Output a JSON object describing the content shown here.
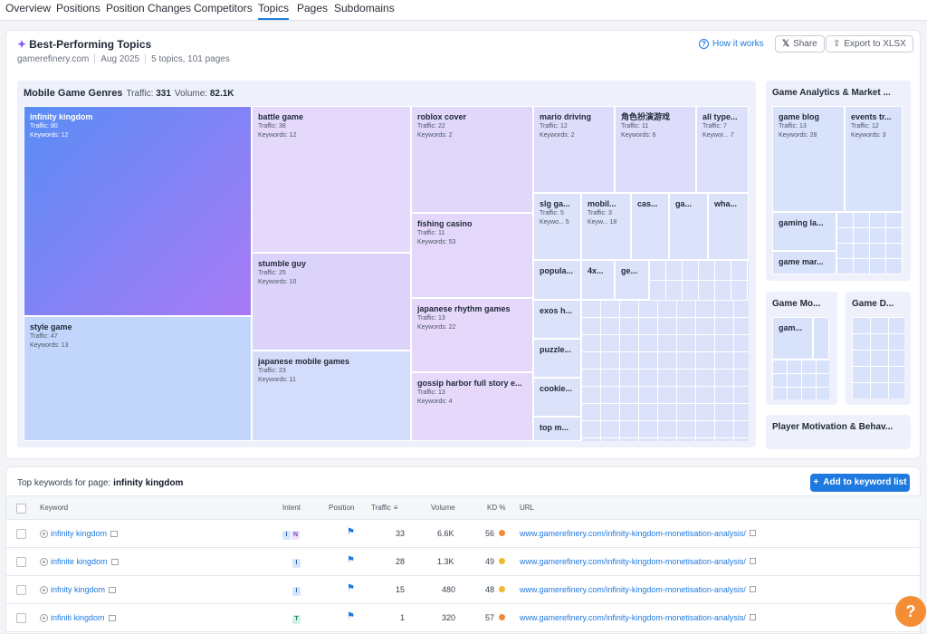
{
  "nav": {
    "tabs": [
      "Overview",
      "Positions",
      "Position Changes",
      "Competitors",
      "Topics",
      "Pages",
      "Subdomains"
    ],
    "active": "Topics"
  },
  "header": {
    "title": "Best-Performing Topics",
    "domain": "gamerefinery.com",
    "date": "Aug 2025",
    "summary": "5 topics, 101 pages",
    "how_it_works": "How it works",
    "share": "Share",
    "export": "Export to XLSX"
  },
  "treemap": {
    "title": "Mobile Game Genres",
    "traffic_label": "Traffic:",
    "traffic": "331",
    "volume_label": "Volume:",
    "volume": "82.1K",
    "cells": [
      {
        "name": "infinity kingdom",
        "traffic": "Traffic: 80",
        "keywords": "Keywords: 12"
      },
      {
        "name": "style game",
        "traffic": "Traffic: 47",
        "keywords": "Keywords: 13"
      },
      {
        "name": "battle game",
        "traffic": "Traffic: 38",
        "keywords": "Keywords: 12"
      },
      {
        "name": "stumble guy",
        "traffic": "Traffic: 25",
        "keywords": "Keywords: 10"
      },
      {
        "name": "japanese mobile games",
        "traffic": "Traffic: 23",
        "keywords": "Keywords: 11"
      },
      {
        "name": "roblox cover",
        "traffic": "Traffic: 22",
        "keywords": "Keywords: 2"
      },
      {
        "name": "fishing casino",
        "traffic": "Traffic: 11",
        "keywords": "Keywords: 53"
      },
      {
        "name": "japanese rhythm games",
        "traffic": "Traffic: 13",
        "keywords": "Keywords: 22"
      },
      {
        "name": "gossip harbor full story e...",
        "traffic": "Traffic: 13",
        "keywords": "Keywords: 4"
      },
      {
        "name": "mario driving",
        "traffic": "Traffic: 12",
        "keywords": "Keywords: 2"
      },
      {
        "name": "角色扮演游戏",
        "traffic": "Traffic: 11",
        "keywords": "Keywords: 6"
      },
      {
        "name": "all type...",
        "traffic": "Traffic: 7",
        "keywords": "Keywor... 7"
      },
      {
        "name": "slg ga...",
        "traffic": "Traffic: 5",
        "keywords": "Keywo... 5"
      },
      {
        "name": "mobil...",
        "traffic": "Traffic: 3",
        "keywords": "Keyw... 18"
      },
      {
        "name": "cas...",
        "traffic": "",
        "keywords": ""
      },
      {
        "name": "ga...",
        "traffic": "",
        "keywords": ""
      },
      {
        "name": "wha...",
        "traffic": "",
        "keywords": ""
      },
      {
        "name": "popula...",
        "traffic": "",
        "keywords": ""
      },
      {
        "name": "4x...",
        "traffic": "",
        "keywords": ""
      },
      {
        "name": "ge...",
        "traffic": "",
        "keywords": ""
      },
      {
        "name": "exos h...",
        "traffic": "",
        "keywords": ""
      },
      {
        "name": "puzzle...",
        "traffic": "",
        "keywords": ""
      },
      {
        "name": "cookie...",
        "traffic": "",
        "keywords": ""
      },
      {
        "name": "top m...",
        "traffic": "",
        "keywords": ""
      }
    ]
  },
  "side_panels": {
    "analytics": {
      "title": "Game Analytics & Market ...",
      "cells": [
        {
          "name": "game blog",
          "traffic": "Traffic: 13",
          "keywords": "Keywords: 28"
        },
        {
          "name": "events tr...",
          "traffic": "Traffic: 12",
          "keywords": "Keywords: 3"
        },
        {
          "name": "gaming la...",
          "traffic": "",
          "keywords": ""
        },
        {
          "name": "game mar...",
          "traffic": "",
          "keywords": ""
        }
      ]
    },
    "monetization": {
      "title": "Game Mo...",
      "cells": [
        {
          "name": "gam...",
          "traffic": "",
          "keywords": ""
        }
      ]
    },
    "design": {
      "title": "Game D..."
    },
    "motivation": {
      "title": "Player Motivation & Behav..."
    }
  },
  "keywords_table": {
    "title_prefix": "Top keywords for page:",
    "page": "infinity kingdom",
    "add_button": "Add to keyword list",
    "columns": [
      "Keyword",
      "Intent",
      "Position",
      "Traffic",
      "Volume",
      "KD %",
      "URL"
    ],
    "rows": [
      {
        "keyword": "infinity kingdom",
        "intents": [
          "I",
          "N"
        ],
        "traffic": "33",
        "volume": "6.6K",
        "kd": "56",
        "kd_color": "#f0883c",
        "url": "www.gamerefinery.com/infinity-kingdom-monetisation-analysis/"
      },
      {
        "keyword": "infinite kingdom",
        "intents": [
          "I"
        ],
        "traffic": "28",
        "volume": "1.3K",
        "kd": "49",
        "kd_color": "#f2b632",
        "url": "www.gamerefinery.com/infinity-kingdom-monetisation-analysis/"
      },
      {
        "keyword": "infnity kingdom",
        "intents": [
          "I"
        ],
        "traffic": "15",
        "volume": "480",
        "kd": "48",
        "kd_color": "#f2b632",
        "url": "www.gamerefinery.com/infinity-kingdom-monetisation-analysis/"
      },
      {
        "keyword": "infiniti kingdom",
        "intents": [
          "T"
        ],
        "traffic": "1",
        "volume": "320",
        "kd": "57",
        "kd_color": "#f0883c",
        "url": "www.gamerefinery.com/infinity-kingdom-monetisation-analysis/"
      }
    ]
  },
  "help": "?"
}
